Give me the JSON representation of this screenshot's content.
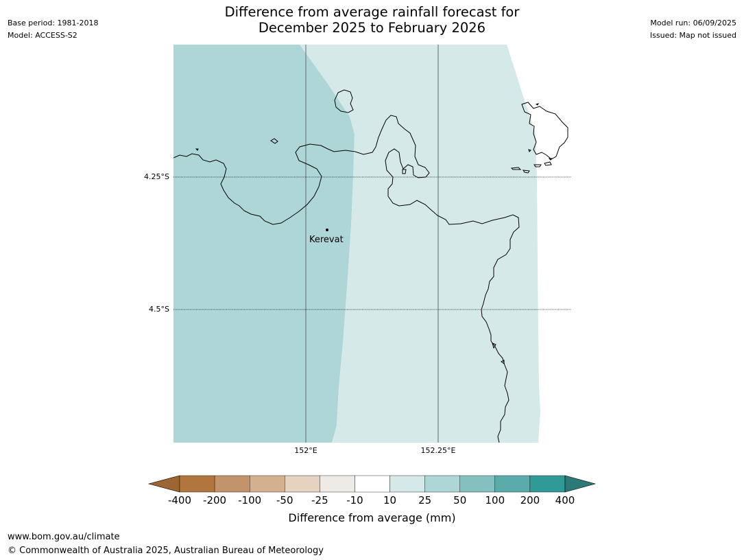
{
  "header": {
    "base_period": "Base period: 1981-2018",
    "model": "Model: ACCESS-S2",
    "model_run": "Model run: 06/09/2025",
    "issued": "Issued: Map not issued",
    "title_line1": "Difference from average rainfall forecast for",
    "title_line2": "December 2025 to February 2026"
  },
  "map": {
    "latitude_labels": [
      "4.25°S",
      "4.5°S"
    ],
    "longitude_labels": [
      "152°E",
      "152.25°E"
    ],
    "place": "Kerevat",
    "region_colors": {
      "band_25_50": "#aed6d6",
      "band_10_25": "#d5e9e9"
    }
  },
  "legend": {
    "ticks": [
      "-400",
      "-200",
      "-100",
      "-50",
      "-25",
      "-10",
      "10",
      "25",
      "50",
      "100",
      "200",
      "400"
    ],
    "colors": [
      "#9d6531",
      "#b0763d",
      "#c1946b",
      "#d3b190",
      "#e5d2c0",
      "#eeebe6",
      "#ffffff",
      "#d5e9e9",
      "#aed6d6",
      "#84c0bf",
      "#5aacab",
      "#319996",
      "#2b7a78"
    ],
    "title": "Difference from average (mm)"
  },
  "footer": {
    "url": "www.bom.gov.au/climate",
    "copyright": "© Commonwealth of Australia 2025, Australian Bureau of Meteorology"
  }
}
